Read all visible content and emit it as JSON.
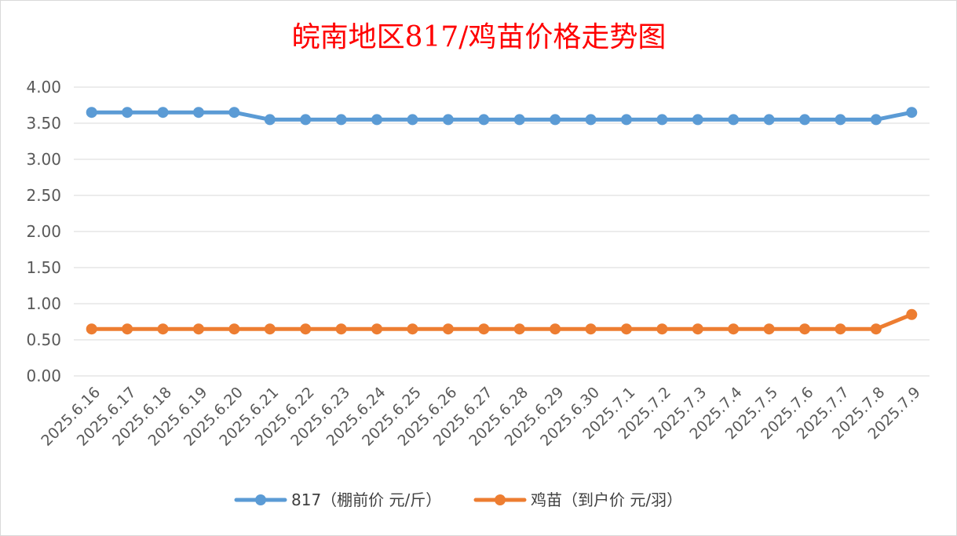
{
  "chart_data": {
    "type": "line",
    "title": "皖南地区817/鸡苗价格走势图",
    "xlabel": "",
    "ylabel": "",
    "ylim": [
      0,
      4
    ],
    "yticks": [
      "0.00",
      "0.50",
      "1.00",
      "1.50",
      "2.00",
      "2.50",
      "3.00",
      "3.50",
      "4.00"
    ],
    "grid": true,
    "legend_position": "bottom",
    "categories": [
      "2025.6.16",
      "2025.6.17",
      "2025.6.18",
      "2025.6.19",
      "2025.6.20",
      "2025.6.21",
      "2025.6.22",
      "2025.6.23",
      "2025.6.24",
      "2025.6.25",
      "2025.6.26",
      "2025.6.27",
      "2025.6.28",
      "2025.6.29",
      "2025.6.30",
      "2025.7.1",
      "2025.7.2",
      "2025.7.3",
      "2025.7.4",
      "2025.7.5",
      "2025.7.6",
      "2025.7.7",
      "2025.7.8",
      "2025.7.9"
    ],
    "series": [
      {
        "name": "817（棚前价 元/斤）",
        "color": "#5b9bd5",
        "values": [
          3.65,
          3.65,
          3.65,
          3.65,
          3.65,
          3.55,
          3.55,
          3.55,
          3.55,
          3.55,
          3.55,
          3.55,
          3.55,
          3.55,
          3.55,
          3.55,
          3.55,
          3.55,
          3.55,
          3.55,
          3.55,
          3.55,
          3.55,
          3.65
        ]
      },
      {
        "name": "鸡苗（到户价 元/羽）",
        "color": "#ed7d31",
        "values": [
          0.65,
          0.65,
          0.65,
          0.65,
          0.65,
          0.65,
          0.65,
          0.65,
          0.65,
          0.65,
          0.65,
          0.65,
          0.65,
          0.65,
          0.65,
          0.65,
          0.65,
          0.65,
          0.65,
          0.65,
          0.65,
          0.65,
          0.65,
          0.85
        ]
      }
    ]
  }
}
